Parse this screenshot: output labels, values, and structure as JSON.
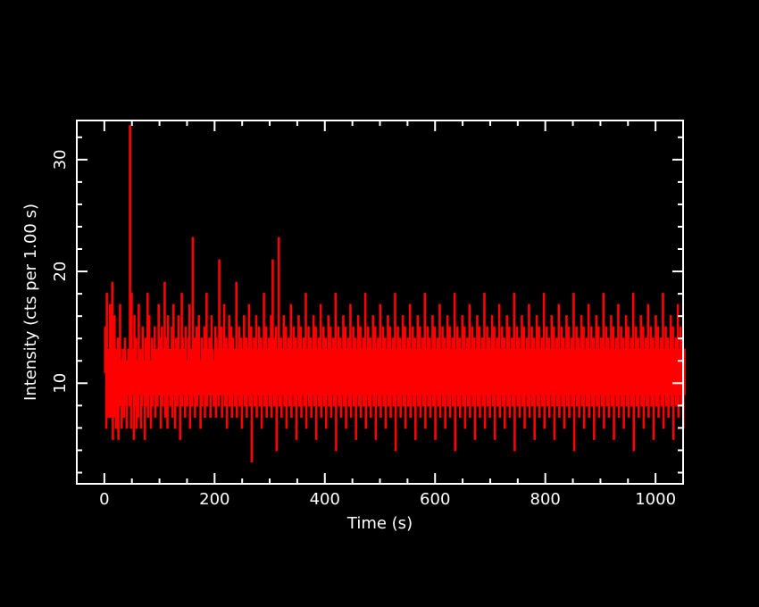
{
  "chart_data": {
    "type": "line",
    "xlabel": "Time (s)",
    "ylabel": "Intensity (cts per 1.00 s)",
    "xlim": [
      -50,
      1050
    ],
    "ylim": [
      1,
      33.5
    ],
    "x_ticks": [
      0,
      200,
      400,
      600,
      800,
      1000
    ],
    "x_tick_labels": [
      "0",
      "200",
      "400",
      "600",
      "800",
      "1000"
    ],
    "y_ticks": [
      10,
      20,
      30
    ],
    "y_tick_labels": [
      "10",
      "20",
      "30"
    ],
    "line_color": "#ff0000",
    "axis_color": "#ffffff",
    "background_color": "#000000",
    "grid": false,
    "series": [
      {
        "x_start": 0,
        "x_step": 1,
        "values": [
          15,
          11,
          13,
          6,
          18,
          9,
          13,
          7,
          12,
          10,
          17,
          7,
          11,
          9,
          19,
          5,
          12,
          8,
          16,
          7,
          10,
          6,
          13,
          9,
          14,
          5,
          11,
          8,
          17,
          9,
          12,
          6,
          10,
          13,
          9,
          7,
          11,
          14,
          8,
          12,
          6,
          10,
          9,
          13,
          11,
          8,
          33,
          12,
          6,
          18,
          10,
          9,
          13,
          5,
          16,
          11,
          8,
          14,
          6,
          12,
          10,
          7,
          17,
          9,
          11,
          13,
          6,
          10,
          8,
          15,
          12,
          9,
          11,
          5,
          14,
          10,
          13,
          8,
          18,
          7,
          11,
          16,
          9,
          12,
          6,
          10,
          14,
          8,
          13,
          11,
          9,
          15,
          7,
          12,
          10,
          13,
          8,
          11,
          17,
          9,
          14,
          12,
          6,
          10,
          15,
          8,
          11,
          13,
          9,
          19,
          7,
          12,
          10,
          14,
          6,
          16,
          11,
          9,
          13,
          8,
          12,
          10,
          15,
          7,
          11,
          17,
          9,
          13,
          6,
          10,
          14,
          12,
          8,
          11,
          16,
          9,
          13,
          5,
          12,
          10,
          18,
          8,
          14,
          11,
          9,
          13,
          7,
          15,
          10,
          12,
          8,
          11,
          14,
          9,
          17,
          6,
          12,
          10,
          13,
          8,
          23,
          11,
          9,
          14,
          7,
          12,
          10,
          15,
          8,
          13,
          11,
          16,
          9,
          12,
          6,
          10,
          14,
          8,
          13,
          11,
          9,
          15,
          7,
          12,
          10,
          18,
          8,
          11,
          13,
          9,
          14,
          12,
          7,
          10,
          16,
          9,
          13,
          11,
          8,
          12,
          10,
          15,
          7,
          14,
          11,
          9,
          13,
          8,
          21,
          10,
          12,
          9,
          15,
          7,
          11,
          13,
          9,
          17,
          8,
          12,
          10,
          14,
          6,
          13,
          11,
          9,
          16,
          8,
          12,
          10,
          15,
          7,
          11,
          14,
          9,
          13,
          8,
          12,
          10,
          19,
          7,
          11,
          13,
          9,
          15,
          8,
          12,
          10,
          14,
          6,
          11,
          13,
          9,
          16,
          8,
          12,
          10,
          14,
          7,
          11,
          13,
          9,
          17,
          8,
          12,
          10,
          15,
          3,
          11,
          13,
          9,
          14,
          8,
          12,
          10,
          16,
          7,
          11,
          13,
          9,
          15,
          8,
          12,
          10,
          14,
          6,
          11,
          13,
          9,
          18,
          8,
          12,
          10,
          15,
          7,
          11,
          13,
          9,
          14,
          8,
          12,
          10,
          16,
          7,
          11,
          21,
          9,
          14,
          8,
          12,
          10,
          15,
          4,
          11,
          13,
          9,
          23,
          8,
          12,
          10,
          14,
          7,
          11,
          13,
          9,
          16,
          8,
          12,
          10,
          15,
          6,
          11,
          13,
          9,
          14,
          8,
          12,
          10,
          17,
          7,
          11,
          13,
          9,
          15,
          8,
          12,
          10,
          14,
          5,
          11,
          13,
          9,
          16,
          8,
          12,
          10,
          15,
          7,
          11,
          13,
          9,
          14,
          8,
          12,
          10,
          18,
          6,
          11,
          13,
          9,
          15,
          8,
          12,
          10,
          14,
          7,
          11,
          13,
          9,
          16,
          8,
          12,
          10,
          15,
          5,
          11,
          13,
          9,
          14,
          8,
          12,
          10,
          17,
          7,
          11,
          13,
          9,
          15,
          8,
          12,
          10,
          14,
          6,
          11,
          13,
          9,
          16,
          8,
          12,
          10,
          15,
          7,
          11,
          13,
          9,
          14,
          8,
          12,
          10,
          18,
          4,
          11,
          13,
          9,
          15,
          8,
          12,
          10,
          14,
          7,
          11,
          13,
          9,
          16,
          8,
          12,
          10,
          15,
          6,
          11,
          13,
          9,
          14,
          8,
          12,
          10,
          17,
          7,
          11,
          13,
          9,
          15,
          8,
          12,
          10,
          14,
          5,
          11,
          13,
          9,
          16,
          8,
          12,
          10,
          15,
          7,
          11,
          13,
          9,
          14,
          8,
          12,
          10,
          18,
          6,
          11,
          13,
          9,
          15,
          8,
          12,
          10,
          14,
          7,
          11,
          13,
          9,
          16,
          8,
          12,
          10,
          15,
          5,
          11,
          13,
          9,
          14,
          8,
          12,
          10,
          17,
          7,
          11,
          13,
          9,
          15,
          8,
          12,
          10,
          14,
          6,
          11,
          13,
          9,
          16,
          8,
          12,
          10,
          15,
          7,
          11,
          13,
          9,
          14,
          8,
          12,
          10,
          18,
          4,
          11,
          13,
          9,
          15,
          8,
          12,
          10,
          14,
          7,
          11,
          13,
          9,
          16,
          8,
          12,
          10,
          15,
          6,
          11,
          13,
          9,
          14,
          8,
          12,
          10,
          17,
          7,
          11,
          13,
          9,
          15,
          8,
          12,
          10,
          14,
          5,
          11,
          13,
          9,
          16,
          8,
          12,
          10,
          15,
          7,
          11,
          13,
          9,
          14,
          8,
          12,
          10,
          18,
          6,
          11,
          13,
          9,
          15,
          8,
          12,
          10,
          14,
          7,
          11,
          13,
          9,
          16,
          8,
          12,
          10,
          15,
          5,
          11,
          13,
          9,
          14,
          8,
          12,
          10,
          17,
          7,
          11,
          13,
          9,
          15,
          8,
          12,
          10,
          14,
          6,
          11,
          13,
          9,
          16,
          8,
          12,
          10,
          15,
          7,
          11,
          13,
          9,
          14,
          8,
          12,
          10,
          18,
          4,
          11,
          13,
          9,
          15,
          8,
          12,
          10,
          14,
          7,
          11,
          13,
          9,
          16,
          8,
          12,
          10,
          15,
          6,
          11,
          13,
          9,
          14,
          8,
          12,
          10,
          17,
          7,
          11,
          13,
          9,
          15,
          8,
          12,
          10,
          14,
          5,
          11,
          13,
          9,
          16,
          8,
          12,
          10,
          15,
          7,
          11,
          13,
          9,
          14,
          8,
          12,
          10,
          18,
          6,
          11,
          13,
          9,
          15,
          8,
          12,
          10,
          14,
          7,
          11,
          13,
          9,
          16,
          8,
          12,
          10,
          15,
          5,
          11,
          13,
          9,
          14,
          8,
          12,
          10,
          17,
          7,
          11,
          13,
          9,
          15,
          8,
          12,
          10,
          14,
          6,
          11,
          13,
          9,
          16,
          8,
          12,
          10,
          15,
          7,
          11,
          13,
          9,
          14,
          8,
          12,
          10,
          18,
          4,
          11,
          13,
          9,
          15,
          8,
          12,
          10,
          14,
          7,
          11,
          13,
          9,
          16,
          8,
          12,
          10,
          15,
          6,
          11,
          13,
          9,
          14,
          8,
          12,
          10,
          17,
          7,
          11,
          13,
          9,
          15,
          8,
          12,
          10,
          14,
          5,
          11,
          13,
          9,
          16,
          8,
          12,
          10,
          15,
          7,
          11,
          13,
          9,
          14,
          8,
          12,
          10,
          18,
          6,
          11,
          13,
          9,
          15,
          8,
          12,
          10,
          14,
          7,
          11,
          13,
          9,
          16,
          8,
          12,
          10,
          15,
          5,
          11,
          13,
          9,
          14,
          8,
          12,
          10,
          17,
          7,
          11,
          13,
          9,
          15,
          8,
          12,
          10,
          14,
          6,
          11,
          13,
          9,
          16,
          8,
          12,
          10,
          15,
          7,
          11,
          13,
          9,
          14,
          8,
          12,
          10,
          18,
          4,
          11,
          13,
          9,
          15,
          8,
          12,
          10,
          14,
          7,
          11,
          13,
          9,
          16,
          8,
          12,
          10,
          15,
          6,
          11,
          13,
          9,
          14,
          8,
          12,
          10,
          17,
          7,
          11,
          13,
          9,
          15,
          8,
          12,
          10,
          14,
          5,
          11,
          13,
          9,
          16,
          8,
          12,
          10,
          15,
          7,
          11,
          13,
          9,
          14,
          8,
          12,
          10,
          18,
          6,
          11,
          13,
          9,
          15,
          8,
          12,
          10,
          14,
          7,
          11,
          13,
          9,
          16,
          8,
          12,
          10,
          15,
          5,
          11,
          13,
          9,
          14,
          8,
          12,
          10,
          17,
          7,
          11,
          13,
          9,
          15,
          8,
          12,
          10,
          14,
          6,
          11,
          13,
          9,
          16,
          8,
          12,
          10,
          15,
          7,
          11,
          13,
          9,
          14,
          8,
          12,
          10,
          18,
          4,
          11,
          13,
          9,
          15,
          8,
          12,
          10,
          14,
          7,
          11,
          13,
          9,
          16,
          8,
          12,
          10,
          15,
          6,
          11,
          13,
          9,
          14,
          8,
          12,
          10,
          17,
          7,
          11,
          13,
          9,
          15,
          8,
          12,
          10,
          14,
          5,
          11,
          13,
          9,
          16,
          8,
          12,
          10,
          15,
          7,
          11,
          13,
          9,
          14,
          8,
          12,
          10,
          18,
          6,
          11,
          13,
          9,
          15,
          8,
          12,
          10,
          14,
          7,
          11,
          13,
          9,
          16,
          8,
          12,
          10,
          15,
          5,
          11,
          13,
          9,
          14,
          8,
          12,
          10,
          17,
          7,
          11,
          13,
          9,
          15,
          8,
          12,
          10,
          14,
          6,
          11,
          13,
          9
        ]
      }
    ]
  }
}
